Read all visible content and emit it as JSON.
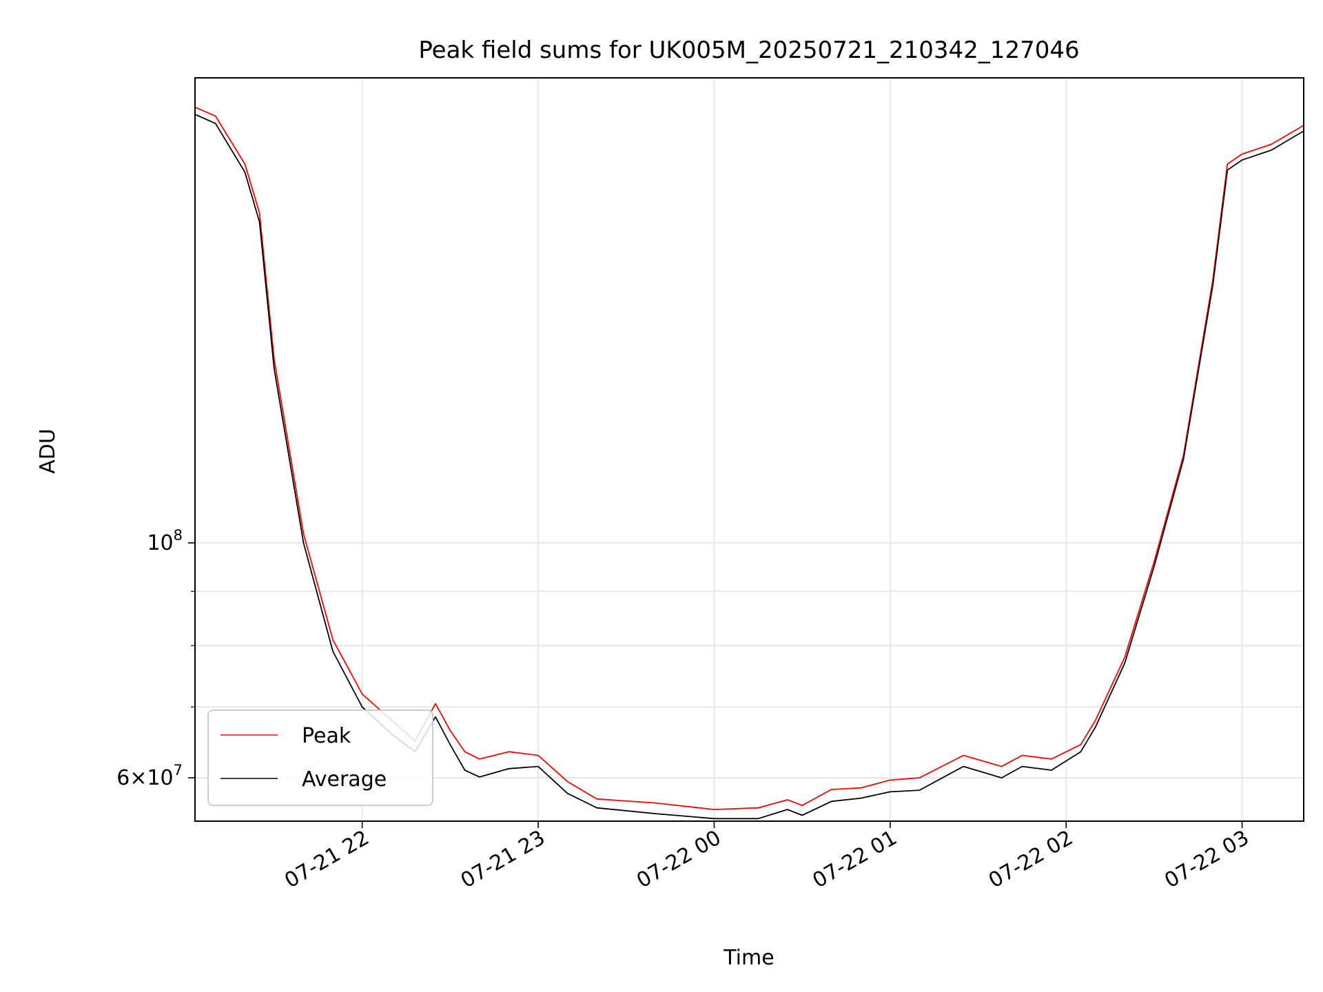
{
  "chart_data": {
    "type": "line",
    "title": "Peak field sums for UK005M_20250721_210342_127046",
    "xlabel": "Time",
    "ylabel": "ADU",
    "yscale": "log",
    "xlim": [
      "2025-07-21 21:03",
      "2025-07-22 03:21"
    ],
    "ylim": [
      54600000,
      275000000
    ],
    "xticks": [
      "07-21 22",
      "07-21 23",
      "07-22 00",
      "07-22 01",
      "07-22 02",
      "07-22 03"
    ],
    "yticks_major": [
      {
        "value": 60000000,
        "base": "6×10",
        "exp": "7"
      },
      {
        "value": 100000000,
        "base": "10",
        "exp": "8"
      }
    ],
    "yticks_minor": [
      60000000,
      70000000,
      80000000,
      90000000
    ],
    "grid": true,
    "legend_position": "lower left",
    "series": [
      {
        "name": "Average",
        "color": "#000000",
        "x": [
          "2025-07-21 21:03",
          "2025-07-21 21:10",
          "2025-07-21 21:20",
          "2025-07-21 21:25",
          "2025-07-21 21:30",
          "2025-07-21 21:40",
          "2025-07-21 21:50",
          "2025-07-21 22:00",
          "2025-07-21 22:10",
          "2025-07-21 22:18",
          "2025-07-21 22:25",
          "2025-07-21 22:30",
          "2025-07-21 22:35",
          "2025-07-21 22:40",
          "2025-07-21 22:50",
          "2025-07-21 23:00",
          "2025-07-21 23:10",
          "2025-07-21 23:20",
          "2025-07-21 23:40",
          "2025-07-22 00:00",
          "2025-07-22 00:15",
          "2025-07-22 00:25",
          "2025-07-22 00:30",
          "2025-07-22 00:40",
          "2025-07-22 00:50",
          "2025-07-22 01:00",
          "2025-07-22 01:10",
          "2025-07-22 01:25",
          "2025-07-22 01:38",
          "2025-07-22 01:45",
          "2025-07-22 01:55",
          "2025-07-22 02:05",
          "2025-07-22 02:10",
          "2025-07-22 02:20",
          "2025-07-22 02:30",
          "2025-07-22 02:40",
          "2025-07-22 02:50",
          "2025-07-22 02:55",
          "2025-07-22 03:00",
          "2025-07-22 03:10",
          "2025-07-22 03:21"
        ],
        "y": [
          254000000,
          249000000,
          224000000,
          201000000,
          146000000,
          100000000,
          79000000,
          70000000,
          66000000,
          63500000,
          68500000,
          64500000,
          61000000,
          60100000,
          61200000,
          61500000,
          58000000,
          56200000,
          55500000,
          54900000,
          54900000,
          56000000,
          55300000,
          57000000,
          57400000,
          58200000,
          58400000,
          61500000,
          60000000,
          61500000,
          61000000,
          63500000,
          67000000,
          77000000,
          95000000,
          120000000,
          175000000,
          225000000,
          230000000,
          235000000,
          245000000
        ]
      },
      {
        "name": "Peak",
        "color": "#ff0000",
        "x": [
          "2025-07-21 21:03",
          "2025-07-21 21:10",
          "2025-07-21 21:20",
          "2025-07-21 21:25",
          "2025-07-21 21:30",
          "2025-07-21 21:40",
          "2025-07-21 21:50",
          "2025-07-21 22:00",
          "2025-07-21 22:10",
          "2025-07-21 22:18",
          "2025-07-21 22:25",
          "2025-07-21 22:30",
          "2025-07-21 22:35",
          "2025-07-21 22:40",
          "2025-07-21 22:50",
          "2025-07-21 23:00",
          "2025-07-21 23:10",
          "2025-07-21 23:20",
          "2025-07-21 23:40",
          "2025-07-22 00:00",
          "2025-07-22 00:15",
          "2025-07-22 00:25",
          "2025-07-22 00:30",
          "2025-07-22 00:40",
          "2025-07-22 00:50",
          "2025-07-22 01:00",
          "2025-07-22 01:10",
          "2025-07-22 01:25",
          "2025-07-22 01:38",
          "2025-07-22 01:45",
          "2025-07-22 01:55",
          "2025-07-22 02:05",
          "2025-07-22 02:10",
          "2025-07-22 02:20",
          "2025-07-22 02:30",
          "2025-07-22 02:40",
          "2025-07-22 02:50",
          "2025-07-22 02:55",
          "2025-07-22 03:00",
          "2025-07-22 03:10",
          "2025-07-22 03:21"
        ],
        "y": [
          258000000,
          253000000,
          228000000,
          205000000,
          149000000,
          102000000,
          81000000,
          72000000,
          68000000,
          65000000,
          70500000,
          66500000,
          63500000,
          62500000,
          63500000,
          63000000,
          59500000,
          57300000,
          56800000,
          56000000,
          56200000,
          57200000,
          56500000,
          58500000,
          58700000,
          59700000,
          60000000,
          63000000,
          61500000,
          63000000,
          62500000,
          64500000,
          68000000,
          78000000,
          96000000,
          121000000,
          177000000,
          228000000,
          233000000,
          238000000,
          248000000
        ]
      }
    ]
  }
}
